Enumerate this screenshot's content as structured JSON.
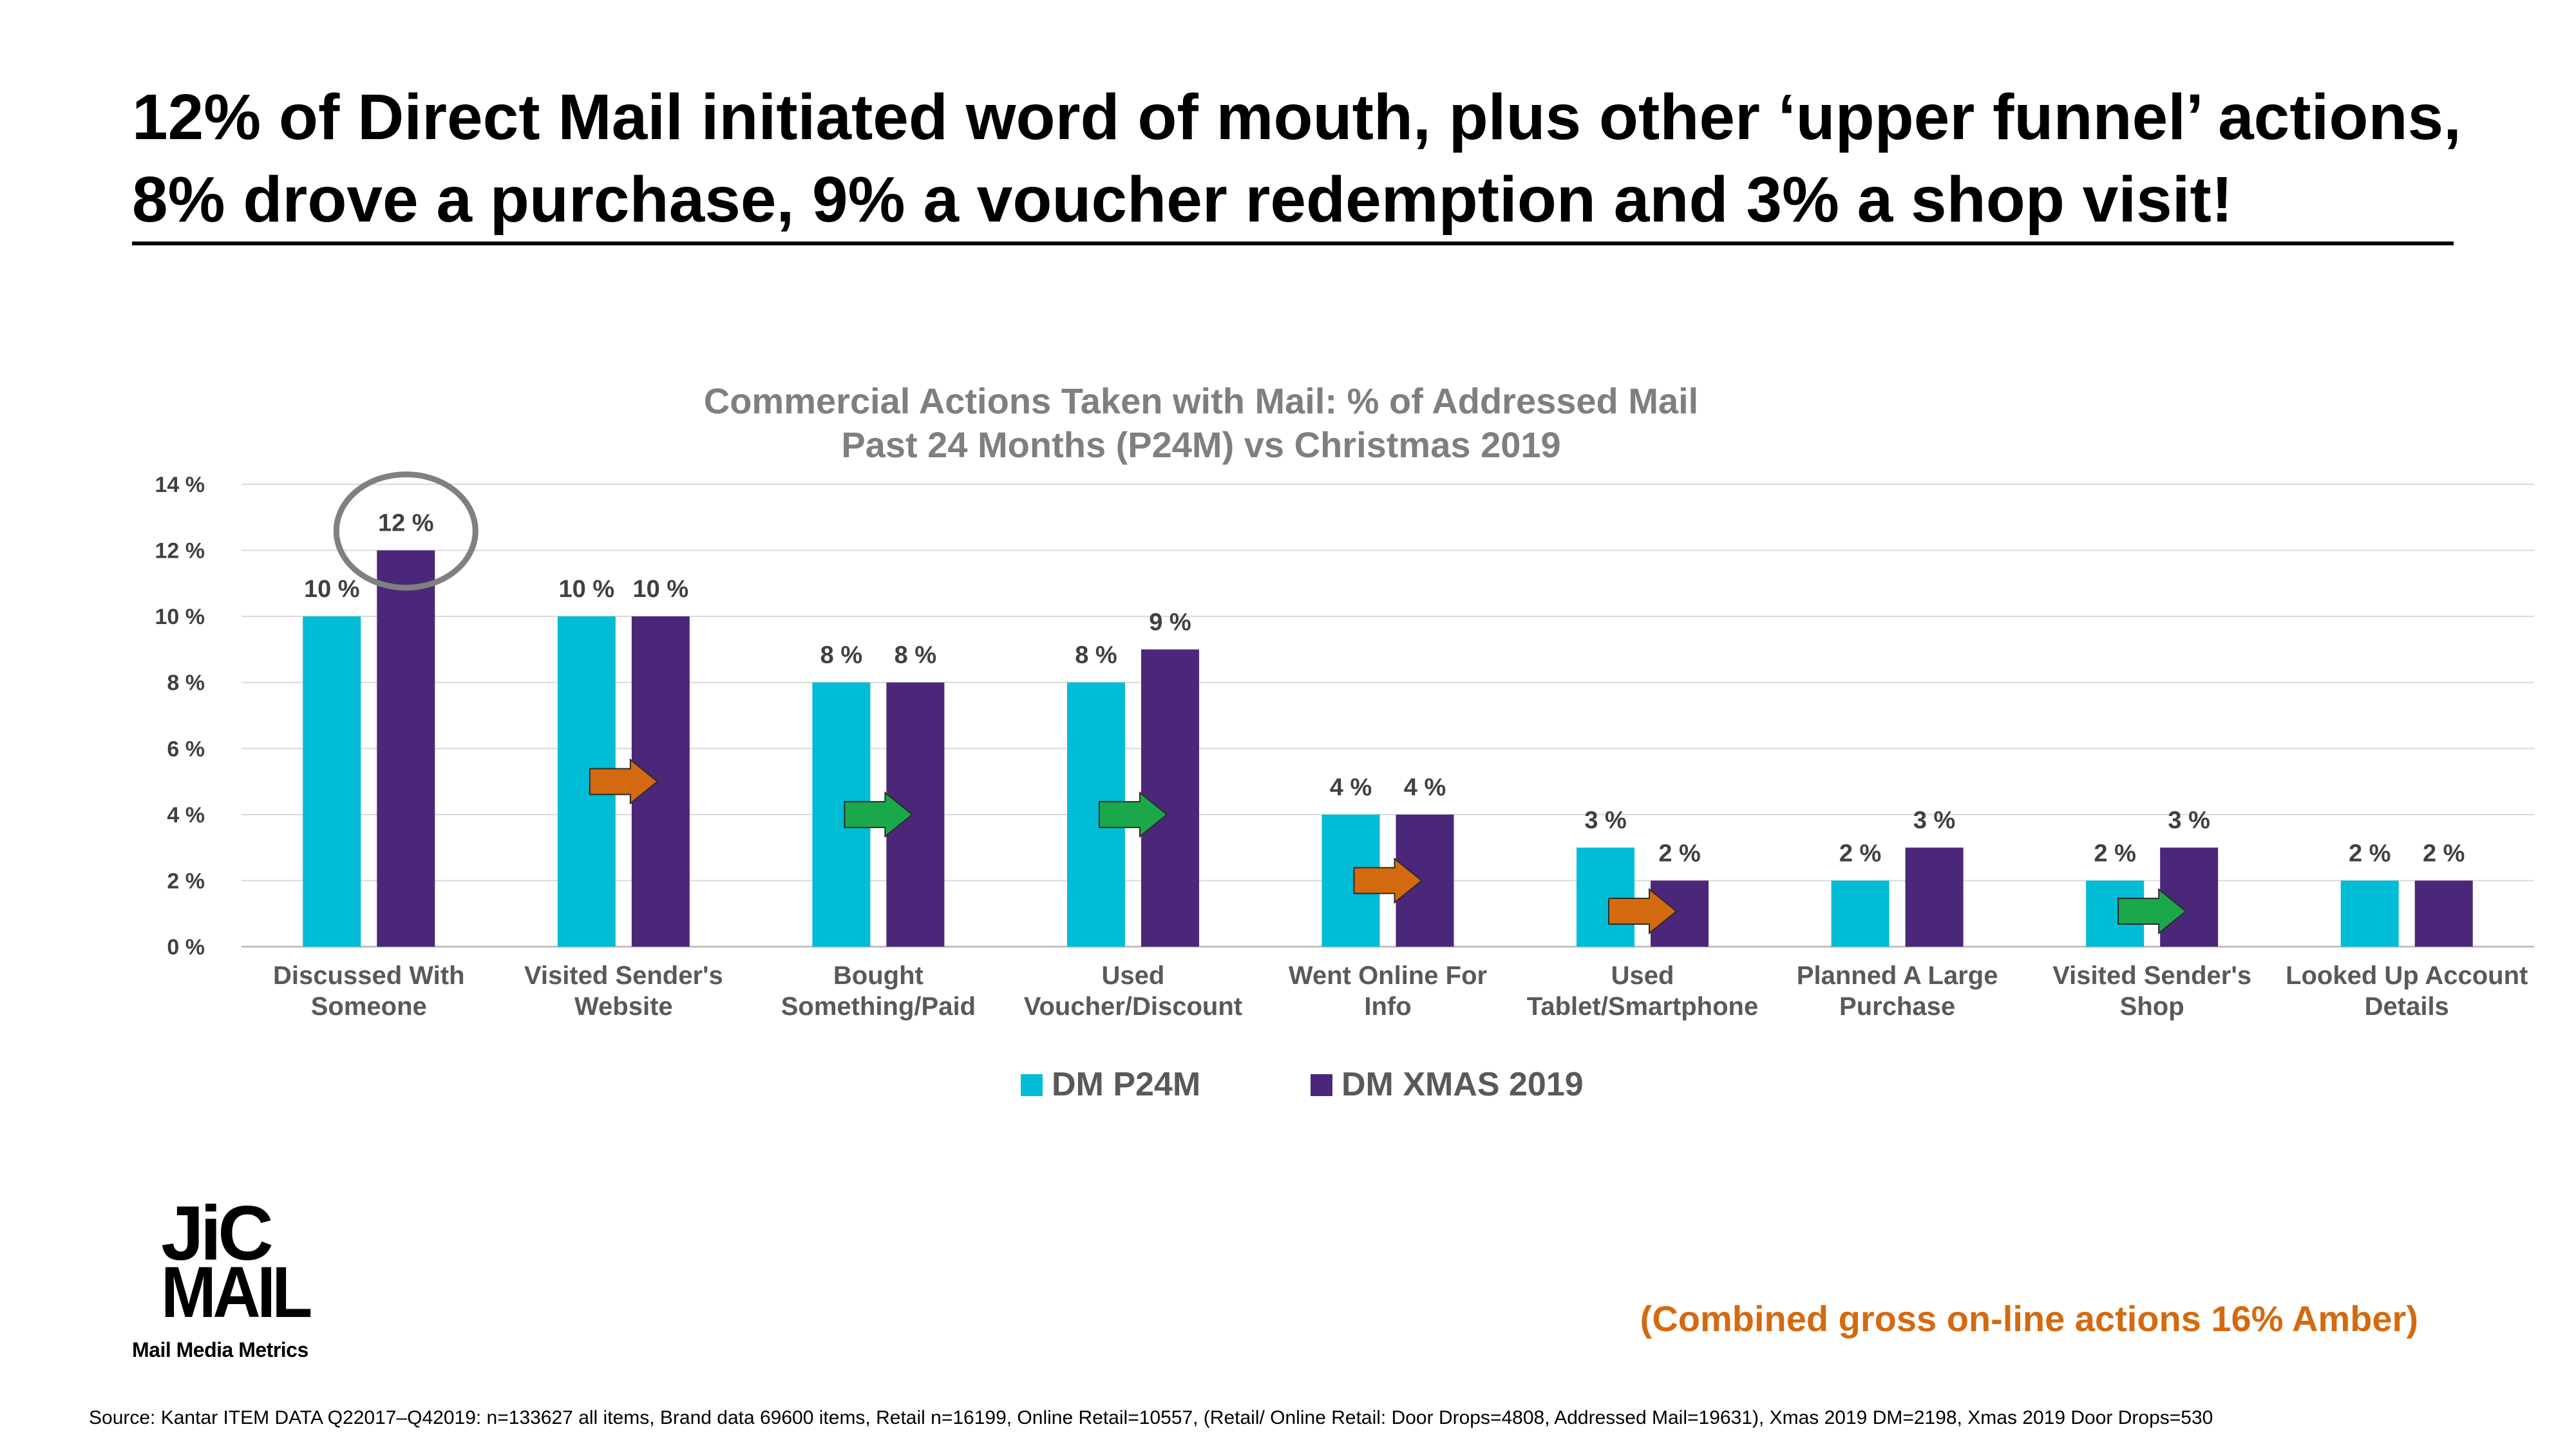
{
  "headline": "12% of Direct Mail initiated word of mouth, plus other ‘upper funnel’ actions, 8% drove a purchase, 9% a voucher redemption and 3% a shop visit!",
  "colors": {
    "p24m": "#00bcd4",
    "xmas": "#4b2779",
    "amber_arrow": "#d46a0f",
    "green_arrow": "#1aa84a",
    "highlight_circle": "#808080",
    "note": "#d46a0f"
  },
  "chart_data": {
    "type": "bar",
    "title": [
      "Commercial Actions Taken with Mail: % of Addressed Mail",
      "Past 24 Months (P24M) vs Christmas 2019"
    ],
    "categories": [
      [
        "Discussed With",
        "Someone"
      ],
      [
        "Visited Sender's",
        "Website"
      ],
      [
        "Bought",
        "Something/Paid"
      ],
      [
        "Used",
        "Voucher/Discount"
      ],
      [
        "Went Online For",
        "Info"
      ],
      [
        "Used",
        "Tablet/Smartphone"
      ],
      [
        "Planned A Large",
        "Purchase"
      ],
      [
        "Visited Sender's",
        "Shop"
      ],
      [
        "Looked Up Account",
        "Details"
      ]
    ],
    "series": [
      {
        "name": "DM P24M",
        "values": [
          10,
          10,
          8,
          8,
          4,
          3,
          2,
          2,
          2
        ]
      },
      {
        "name": "DM XMAS 2019",
        "values": [
          12,
          10,
          8,
          9,
          4,
          2,
          3,
          3,
          2
        ]
      }
    ],
    "ylim": [
      0,
      14
    ],
    "yticks": [
      0,
      2,
      4,
      6,
      8,
      10,
      12,
      14
    ],
    "y_tick_suffix": " %",
    "data_label_suffix": " %",
    "grid": true,
    "legend_position": "bottom",
    "highlight_category_index": 0,
    "highlight_series_index": 1,
    "arrows": [
      {
        "category_index": 1,
        "color": "amber"
      },
      {
        "category_index": 2,
        "color": "green"
      },
      {
        "category_index": 3,
        "color": "green"
      },
      {
        "category_index": 4,
        "color": "amber"
      },
      {
        "category_index": 5,
        "color": "amber"
      },
      {
        "category_index": 7,
        "color": "green"
      }
    ]
  },
  "logo": {
    "line1": "JiC",
    "line2": "MAIL",
    "tagline": "Mail Media Metrics"
  },
  "note": "(Combined gross on-line actions 16%  Amber)",
  "source": "Source: Kantar  ITEM DATA Q22017–Q42019:  n=133627 all items, Brand data 69600 items, Retail n=16199, Online Retail=10557,  (Retail/ Online Retail: Door Drops=4808, Addressed Mail=19631),  Xmas 2019 DM=2198, Xmas 2019 Door Drops=530"
}
